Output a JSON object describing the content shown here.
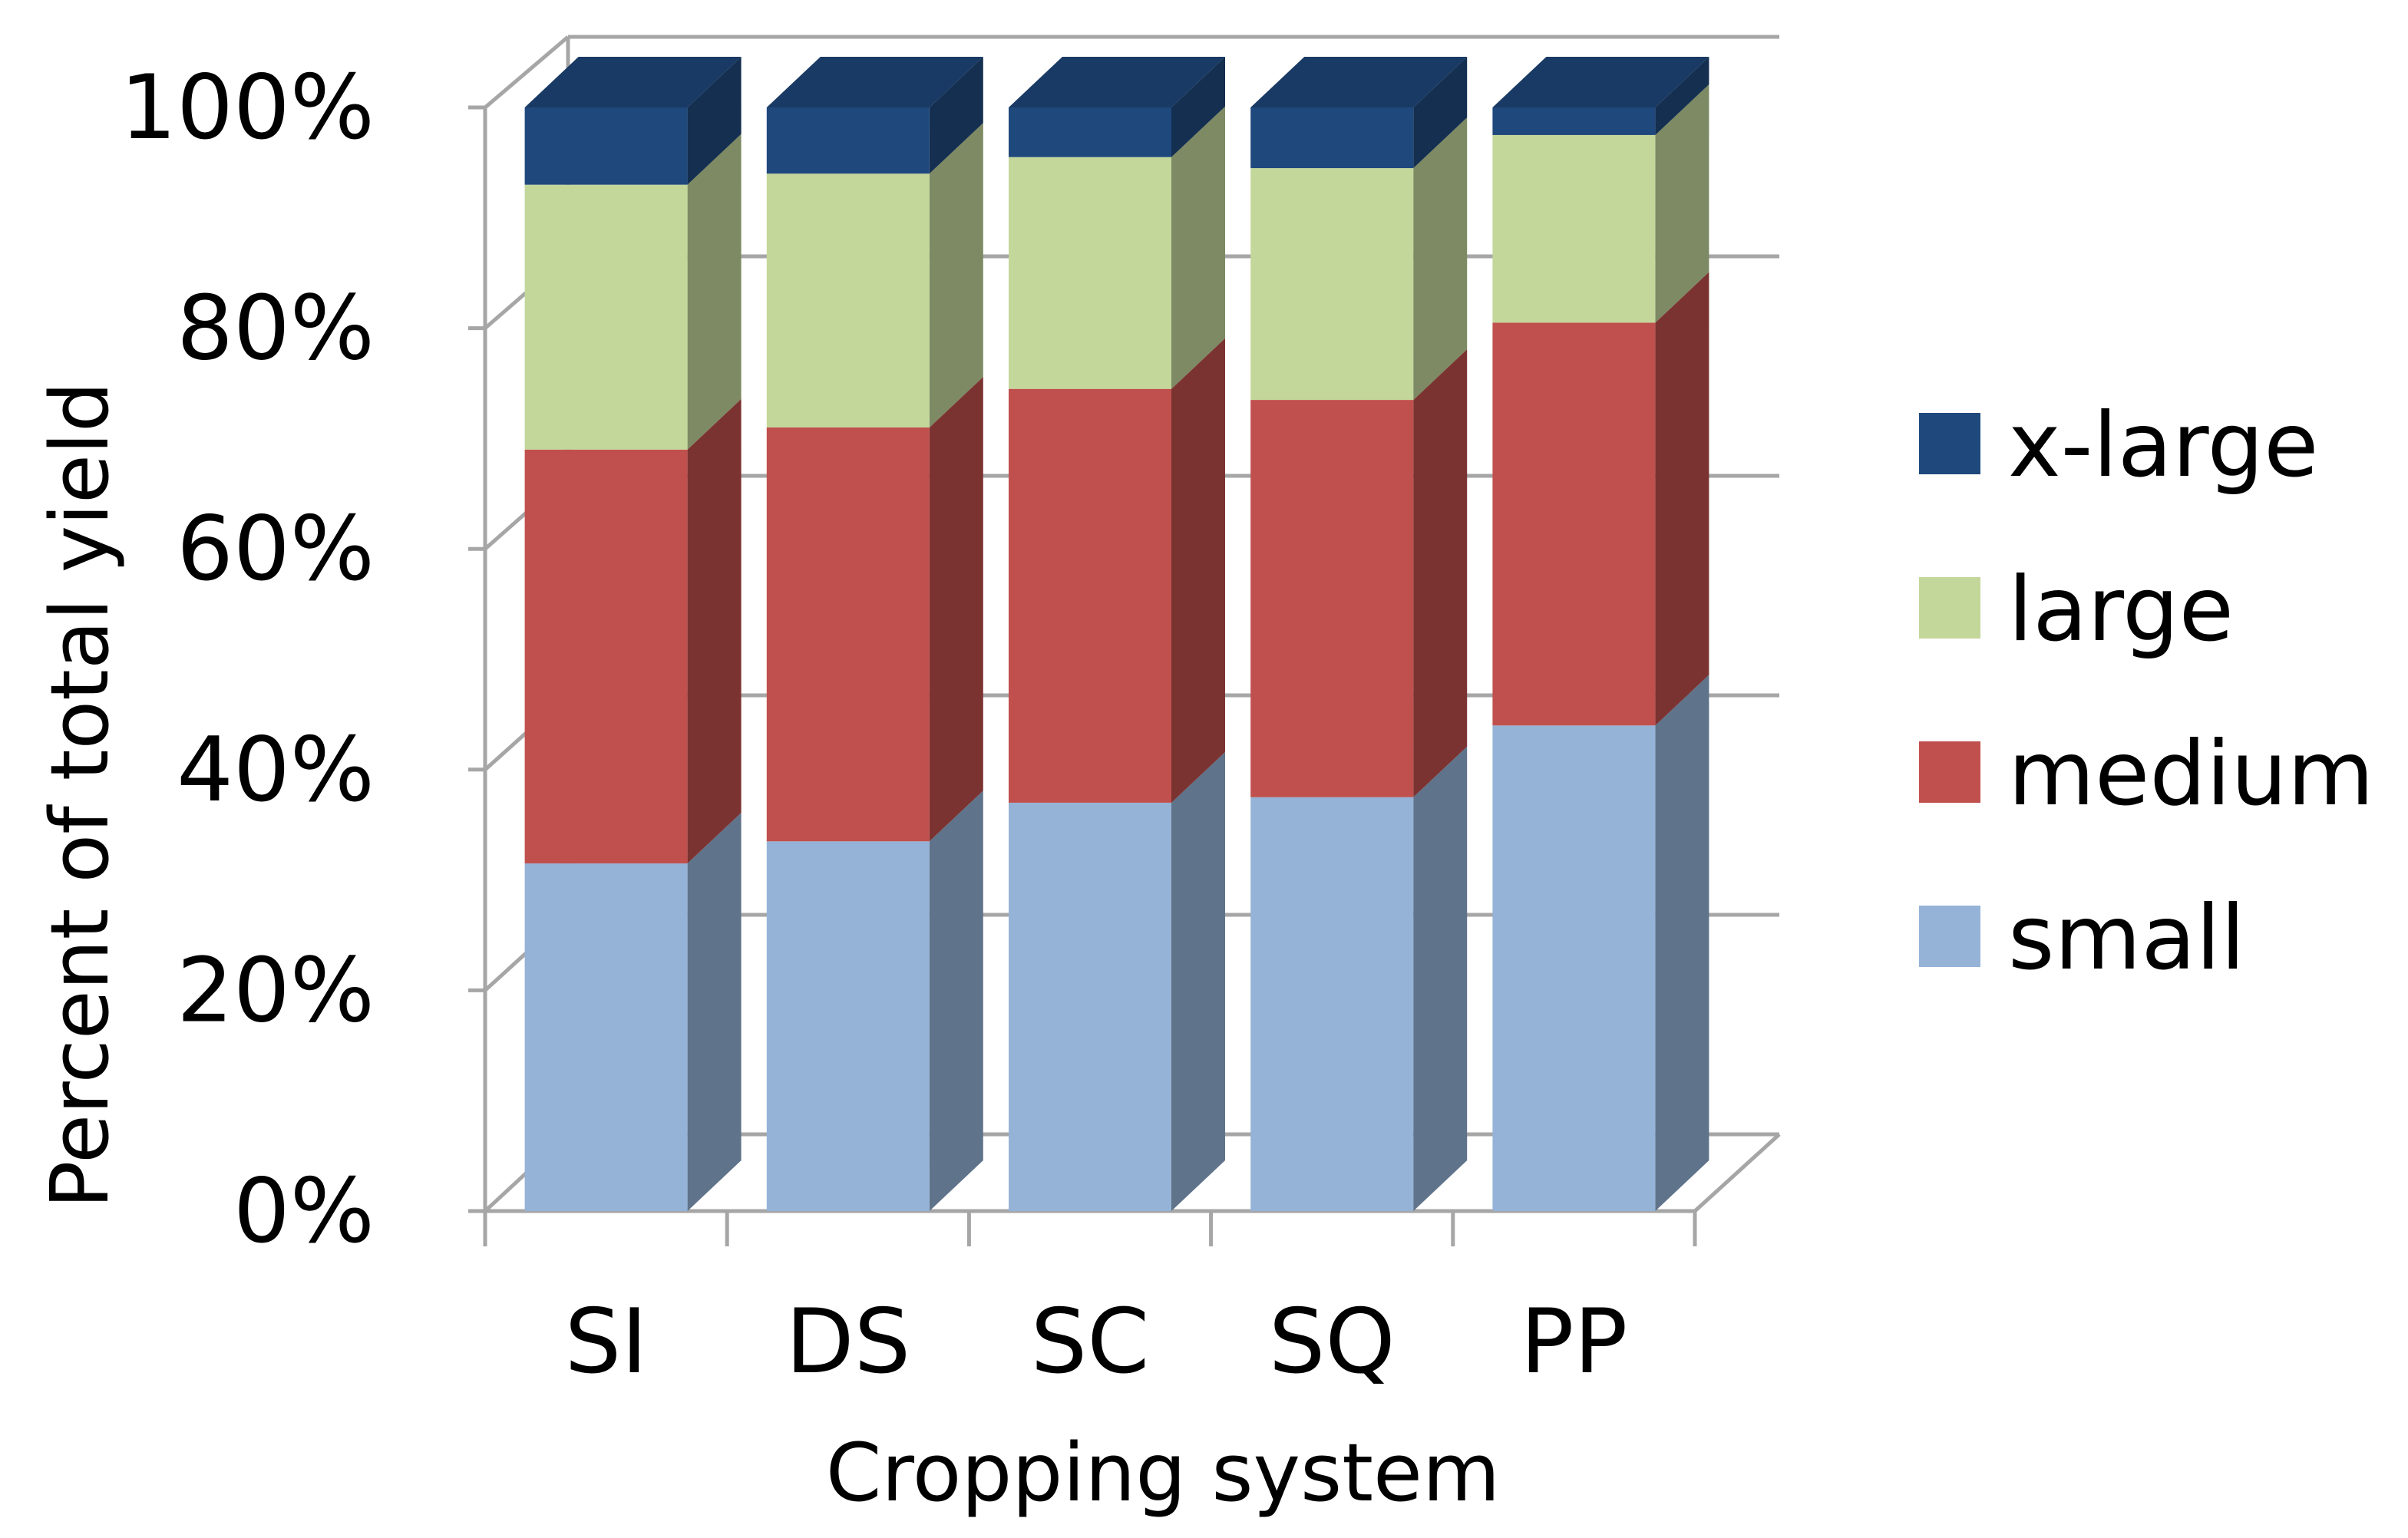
{
  "chart_data": {
    "type": "bar",
    "stacked": true,
    "percent_stacked": true,
    "three_d": true,
    "title": "",
    "xlabel": "Cropping system",
    "ylabel": "Percent of total yield",
    "categories": [
      "SI",
      "DS",
      "SC",
      "SQ",
      "PP"
    ],
    "series": [
      {
        "name": "small",
        "color": "#95B3D7",
        "values": [
          31.5,
          33.5,
          37,
          37.5,
          44
        ]
      },
      {
        "name": "medium",
        "color": "#C0504D",
        "values": [
          37.5,
          37.5,
          37.5,
          36,
          36.5
        ]
      },
      {
        "name": "large",
        "color": "#C4D79B",
        "values": [
          24,
          23,
          21,
          21,
          17
        ]
      },
      {
        "name": "x-large",
        "color": "#1F497D",
        "values": [
          7,
          6,
          4.5,
          5.5,
          2.5
        ]
      }
    ],
    "ylim": [
      0,
      100
    ],
    "yticks": [
      "0%",
      "20%",
      "40%",
      "60%",
      "80%",
      "100%"
    ],
    "legend_position": "right",
    "legend_order": [
      "x-large",
      "large",
      "medium",
      "small"
    ],
    "grid": true
  }
}
